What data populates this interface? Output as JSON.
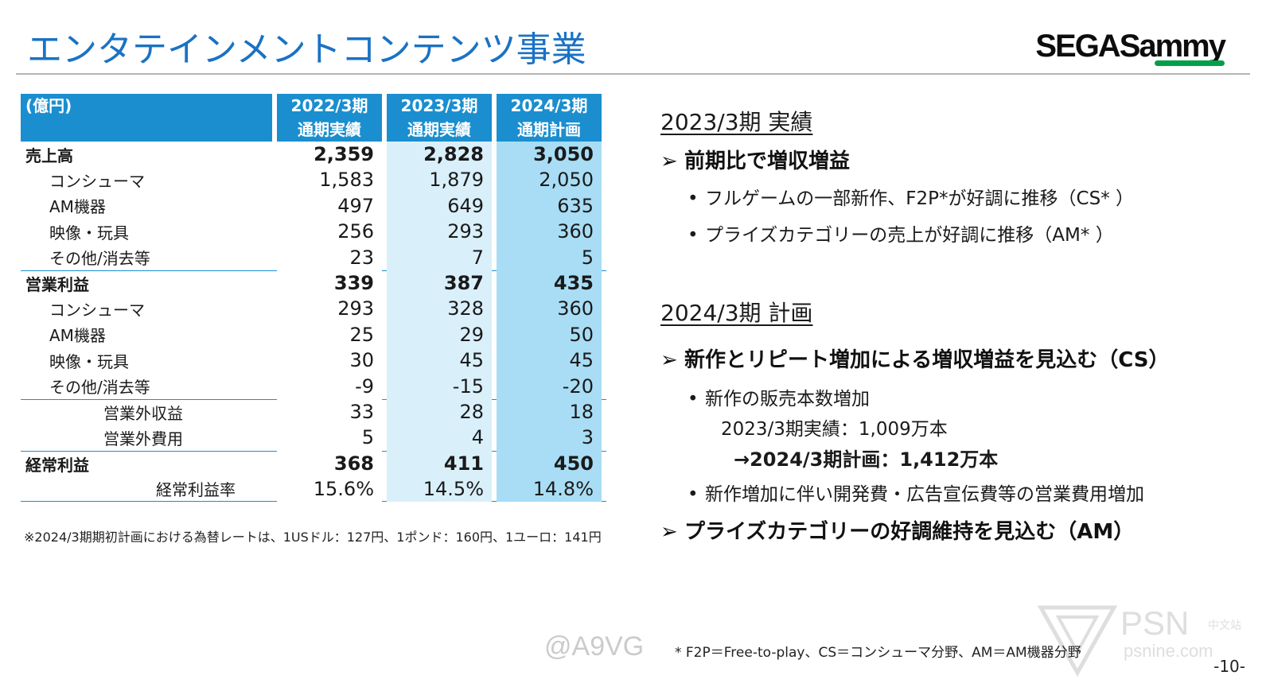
{
  "header": {
    "title": "エンタテインメントコンテンツ事業",
    "logo": "SEGASammy"
  },
  "table": {
    "unit": "(億円)",
    "columns": [
      {
        "line1": "2022/3期",
        "line2": "通期実績"
      },
      {
        "line1": "2023/3期",
        "line2": "通期実績"
      },
      {
        "line1": "2024/3期",
        "line2": "通期計画"
      }
    ],
    "rows": [
      {
        "label": "売上高",
        "values": [
          "2,359",
          "2,828",
          "3,050"
        ]
      },
      {
        "label": "コンシューマ",
        "values": [
          "1,583",
          "1,879",
          "2,050"
        ]
      },
      {
        "label": "AM機器",
        "values": [
          "497",
          "649",
          "635"
        ]
      },
      {
        "label": "映像・玩具",
        "values": [
          "256",
          "293",
          "360"
        ]
      },
      {
        "label": "その他/消去等",
        "values": [
          "23",
          "7",
          "5"
        ]
      },
      {
        "label": "営業利益",
        "values": [
          "339",
          "387",
          "435"
        ]
      },
      {
        "label": "コンシューマ",
        "values": [
          "293",
          "328",
          "360"
        ]
      },
      {
        "label": "AM機器",
        "values": [
          "25",
          "29",
          "50"
        ]
      },
      {
        "label": "映像・玩具",
        "values": [
          "30",
          "45",
          "45"
        ]
      },
      {
        "label": "その他/消去等",
        "values": [
          "-9",
          "-15",
          "-20"
        ]
      },
      {
        "label": "営業外収益",
        "values": [
          "33",
          "28",
          "18"
        ]
      },
      {
        "label": "営業外費用",
        "values": [
          "5",
          "4",
          "3"
        ]
      },
      {
        "label": "経常利益",
        "values": [
          "368",
          "411",
          "450"
        ]
      },
      {
        "label": "経常利益率",
        "values": [
          "15.6%",
          "14.5%",
          "14.8%"
        ]
      }
    ],
    "footnote": "※2024/3期期初計画における為替レートは、1USドル：127円、1ポンド：160円、1ユーロ：141円"
  },
  "results": {
    "heading": "2023/3期 実績",
    "arrow": "➢",
    "bullet": "•",
    "point": "前期比で増収増益",
    "subs": [
      "フルゲームの一部新作、F2P*が好調に推移（CS* ）",
      "プライズカテゴリーの売上が好調に推移（AM* ）"
    ]
  },
  "plan": {
    "heading": "2024/3期 計画",
    "point1": "新作とリピート増加による増収増益を見込む（CS）",
    "sub1": "新作の販売本数増加",
    "line_actual": "2023/3期実績：1,009万本",
    "line_plan": "→2024/3期計画：1,412万本",
    "sub2": "新作増加に伴い開発費・広告宣伝費等の営業費用増加",
    "point2": "プライズカテゴリーの好調維持を見込む（AM）"
  },
  "footer": {
    "definitions": "* F2P＝Free-to-play、CS＝コンシューマ分野、AM＝AM機器分野",
    "page": "-10-"
  },
  "watermarks": {
    "a9vg": "@A9VG",
    "psn": "PSN",
    "psn_cn": "中文站",
    "psn_url": "psnine.com"
  }
}
